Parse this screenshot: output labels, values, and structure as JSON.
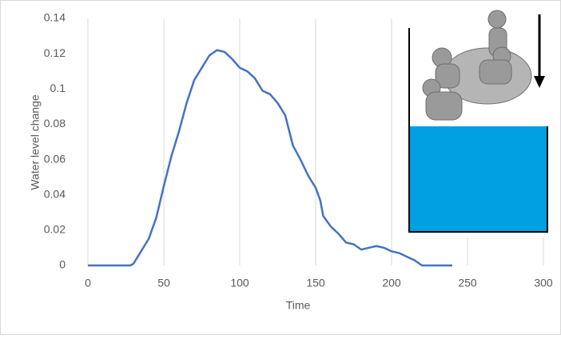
{
  "chart_data": {
    "type": "line",
    "x_label": "Time",
    "y_label": "Water level change",
    "x": [
      0,
      10,
      20,
      28,
      30,
      35,
      40,
      45,
      50,
      55,
      60,
      65,
      70,
      75,
      80,
      85,
      90,
      95,
      100,
      105,
      110,
      115,
      120,
      125,
      130,
      135,
      140,
      145,
      150,
      153,
      155,
      160,
      165,
      170,
      175,
      180,
      185,
      190,
      195,
      200,
      205,
      210,
      215,
      220,
      225,
      230,
      240
    ],
    "series": [
      {
        "name": "Water level change",
        "color": "#4472c4",
        "values": [
          0,
          0,
          0,
          0,
          0.001,
          0.008,
          0.015,
          0.027,
          0.045,
          0.062,
          0.076,
          0.092,
          0.105,
          0.112,
          0.119,
          0.122,
          0.121,
          0.117,
          0.112,
          0.11,
          0.106,
          0.099,
          0.097,
          0.092,
          0.085,
          0.068,
          0.06,
          0.051,
          0.044,
          0.037,
          0.028,
          0.022,
          0.018,
          0.013,
          0.012,
          0.009,
          0.01,
          0.011,
          0.01,
          0.008,
          0.007,
          0.005,
          0.003,
          0,
          0,
          0,
          0
        ]
      }
    ],
    "xlim": [
      0,
      300
    ],
    "xticks": [
      0,
      50,
      100,
      150,
      200,
      250,
      300
    ],
    "ylim": [
      0,
      0.14
    ],
    "yticks": [
      0,
      0.02,
      0.04,
      0.06,
      0.08,
      0.1,
      0.12,
      0.14
    ],
    "grid": "x"
  }
}
